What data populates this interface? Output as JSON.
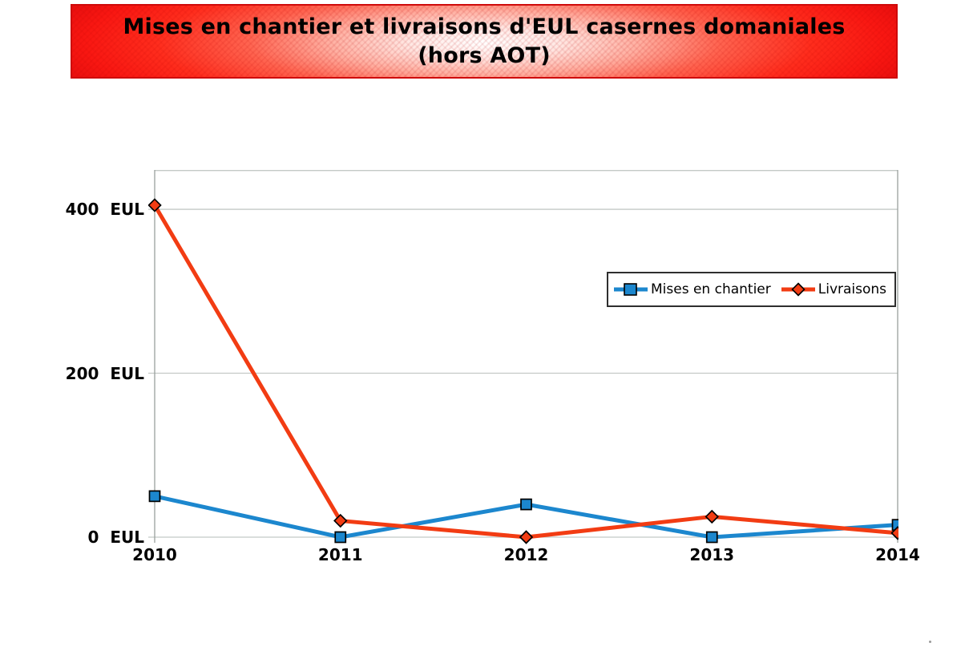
{
  "banner": {
    "title_line1": "Mises en chantier et livraisons d'EUL casernes domaniales",
    "title_line2": "(hors AOT)"
  },
  "chart_data": {
    "type": "line",
    "title": "Mises en chantier et livraisons d'EUL casernes domaniales (hors AOT)",
    "categories": [
      "2010",
      "2011",
      "2012",
      "2013",
      "2014"
    ],
    "series": [
      {
        "name": "Mises en chantier",
        "marker": "square",
        "color": "#1C87CE",
        "values": [
          50,
          0,
          40,
          0,
          15
        ]
      },
      {
        "name": "Livraisons",
        "marker": "diamond",
        "color": "#F23C13",
        "values": [
          405,
          20,
          0,
          25,
          5
        ]
      }
    ],
    "yticks": [
      {
        "value": 0,
        "label": "0  EUL"
      },
      {
        "value": 200,
        "label": "200  EUL"
      },
      {
        "value": 400,
        "label": "400  EUL"
      }
    ],
    "ylim": [
      0,
      448
    ],
    "unit": "EUL",
    "grid": "horizontal-only",
    "legend_position": "inside-right-middle"
  },
  "colors": {
    "grid_line": "#c4c9c6",
    "axis_line": "#9aa09d",
    "marker_outline": "#000000",
    "banner_red": "#f91712",
    "banner_border": "#cf0a0a",
    "legend_border": "#2e2e2e",
    "text": "#000000"
  }
}
